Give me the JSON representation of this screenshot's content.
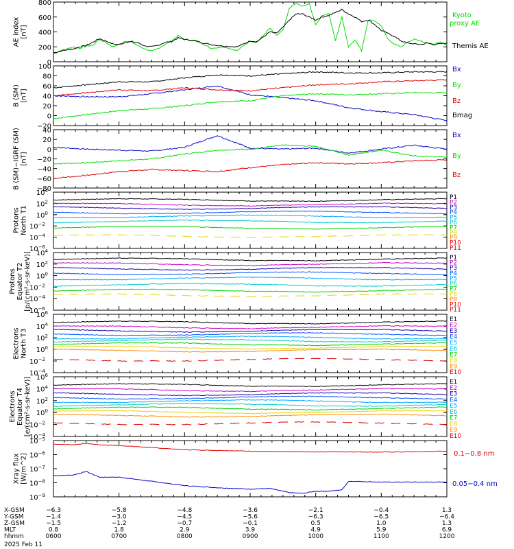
{
  "chart_data": [
    {
      "type": "line",
      "ylabel": [
        "AE index",
        "[nT]"
      ],
      "ylim": [
        0,
        800
      ],
      "yticks": [
        "0",
        "200",
        "400",
        "600",
        "800"
      ],
      "series": [
        {
          "name": "Kyoto proxy AE",
          "color": "#00dd00",
          "x": [
            0,
            0.1,
            0.2,
            0.3,
            0.4,
            0.5,
            0.6,
            0.7,
            0.8,
            0.9,
            1.0,
            1.1,
            1.2,
            1.3,
            1.4,
            1.5,
            1.6,
            1.7,
            1.8,
            1.9,
            2.0,
            2.2,
            2.4,
            2.6,
            2.8,
            3.0,
            3.1,
            3.2,
            3.3,
            3.4,
            3.5,
            3.6,
            3.7,
            3.8,
            3.9,
            4.0,
            4.1,
            4.2,
            4.3,
            4.4,
            4.5,
            4.6,
            4.7,
            4.8,
            4.9,
            5.0,
            5.1,
            5.2,
            5.3,
            5.4,
            5.5,
            5.6,
            5.7,
            5.8,
            5.9,
            6.0
          ],
          "values": [
            100,
            150,
            170,
            200,
            180,
            210,
            220,
            300,
            260,
            200,
            230,
            280,
            260,
            210,
            170,
            140,
            180,
            230,
            280,
            350,
            300,
            280,
            180,
            200,
            150,
            280,
            260,
            350,
            450,
            350,
            420,
            720,
            780,
            740,
            780,
            500,
            620,
            650,
            280,
            600,
            200,
            300,
            150,
            560,
            550,
            480,
            300,
            240,
            200,
            260,
            300,
            280,
            250,
            240,
            260,
            230
          ]
        },
        {
          "name": "Themis AE",
          "color": "#000000",
          "x": [
            0,
            0.1,
            0.2,
            0.3,
            0.4,
            0.5,
            0.6,
            0.7,
            0.8,
            0.9,
            1.0,
            1.1,
            1.2,
            1.3,
            1.4,
            1.5,
            1.6,
            1.7,
            1.8,
            1.9,
            2.0,
            2.2,
            2.4,
            2.6,
            2.8,
            3.0,
            3.1,
            3.2,
            3.3,
            3.4,
            3.5,
            3.6,
            3.7,
            3.8,
            3.9,
            4.0,
            4.1,
            4.2,
            4.3,
            4.4,
            4.5,
            4.6,
            4.7,
            4.8,
            4.9,
            5.0,
            5.1,
            5.2,
            5.3,
            5.4,
            5.5,
            5.6,
            5.7,
            5.8,
            5.9,
            6.0
          ],
          "values": [
            120,
            140,
            160,
            170,
            200,
            220,
            260,
            310,
            280,
            240,
            230,
            260,
            270,
            250,
            210,
            200,
            220,
            260,
            270,
            320,
            300,
            270,
            230,
            210,
            200,
            280,
            270,
            330,
            400,
            380,
            460,
            560,
            640,
            640,
            600,
            560,
            600,
            620,
            660,
            700,
            640,
            600,
            540,
            560,
            500,
            420,
            380,
            340,
            280,
            250,
            240,
            230,
            250,
            230,
            240,
            250
          ]
        }
      ],
      "legend": [
        "Kyoto proxy AE",
        "Themis AE"
      ]
    },
    {
      "type": "line",
      "ylabel": [
        "B (SM)",
        "[nT]"
      ],
      "ylim": [
        -20,
        100
      ],
      "yticks": [
        "−20",
        "0",
        "20",
        "40",
        "60",
        "80",
        "100"
      ],
      "series": [
        {
          "name": "Bx",
          "color": "#0000cc",
          "x": [
            0,
            0.5,
            1.0,
            1.5,
            2.0,
            2.5,
            3.0,
            3.5,
            4.0,
            4.5,
            5.0,
            5.5,
            6.0
          ],
          "values": [
            40,
            38,
            38,
            44,
            52,
            60,
            42,
            36,
            30,
            16,
            8,
            2,
            -10
          ]
        },
        {
          "name": "By",
          "color": "#00dd00",
          "x": [
            0,
            0.5,
            1.0,
            1.5,
            2.0,
            2.5,
            3.0,
            3.5,
            4.0,
            4.5,
            5.0,
            5.5,
            6.0
          ],
          "values": [
            -6,
            2,
            10,
            14,
            20,
            28,
            30,
            40,
            44,
            42,
            44,
            46,
            46
          ]
        },
        {
          "name": "Bz",
          "color": "#dd0000",
          "x": [
            0,
            0.5,
            1.0,
            1.5,
            2.0,
            2.5,
            3.0,
            3.5,
            4.0,
            4.5,
            5.0,
            5.5,
            6.0
          ],
          "values": [
            40,
            46,
            52,
            50,
            56,
            52,
            50,
            56,
            62,
            64,
            68,
            70,
            72
          ]
        },
        {
          "name": "Bmag",
          "color": "#000000",
          "x": [
            0,
            0.5,
            1.0,
            1.5,
            2.0,
            2.5,
            3.0,
            3.5,
            4.0,
            4.5,
            5.0,
            5.5,
            6.0
          ],
          "values": [
            56,
            62,
            68,
            68,
            76,
            82,
            80,
            84,
            88,
            86,
            86,
            88,
            88
          ]
        }
      ],
      "legend": [
        "Bx",
        "By",
        "Bz",
        "Bmag"
      ]
    },
    {
      "type": "line",
      "ylabel": [
        "B (SM)−IGRF (SM)",
        "[nT]"
      ],
      "ylim": [
        -80,
        40
      ],
      "yticks": [
        "−80",
        "−60",
        "−40",
        "−20",
        "0",
        "20",
        "40"
      ],
      "series": [
        {
          "name": "Bx",
          "color": "#0000cc",
          "x": [
            0,
            0.5,
            1.0,
            1.5,
            2.0,
            2.5,
            3.0,
            3.5,
            4.0,
            4.5,
            5.0,
            5.5,
            6.0
          ],
          "values": [
            4,
            0,
            -2,
            -4,
            4,
            28,
            2,
            0,
            2,
            -8,
            0,
            8,
            0
          ]
        },
        {
          "name": "By",
          "color": "#00dd00",
          "x": [
            0,
            0.5,
            1.0,
            1.5,
            2.0,
            2.5,
            3.0,
            3.5,
            4.0,
            4.5,
            5.0,
            5.5,
            6.0
          ],
          "values": [
            -30,
            -28,
            -24,
            -20,
            -10,
            -2,
            0,
            8,
            6,
            -12,
            -2,
            -14,
            -16
          ]
        },
        {
          "name": "Bz",
          "color": "#dd0000",
          "x": [
            0,
            0.5,
            1.0,
            1.5,
            2.0,
            2.5,
            3.0,
            3.5,
            4.0,
            4.5,
            5.0,
            5.5,
            6.0
          ],
          "values": [
            -60,
            -54,
            -46,
            -42,
            -44,
            -46,
            -38,
            -32,
            -28,
            -30,
            -28,
            -24,
            -22
          ]
        }
      ],
      "legend": [
        "Bx",
        "By",
        "Bz"
      ]
    },
    {
      "type": "line",
      "ylabel": [
        "Protons",
        "North T1"
      ],
      "yscale": "log",
      "ylim_exp": [
        -6,
        4
      ],
      "yticks": [
        {
          "b": "10",
          "e": "4"
        },
        {
          "b": "10",
          "e": "2"
        },
        {
          "b": "10",
          "e": "0"
        },
        {
          "b": "10",
          "e": "-2"
        },
        {
          "b": "10",
          "e": "-4"
        },
        {
          "b": "10",
          "e": "-6"
        }
      ],
      "channels": [
        {
          "name": "P1",
          "color": "#000000",
          "log": 2.6
        },
        {
          "name": "P2",
          "color": "#c800c8",
          "log": 1.8
        },
        {
          "name": "P3",
          "color": "#1a00a8",
          "log": 1.2
        },
        {
          "name": "P4",
          "color": "#0050ff",
          "log": 0.4
        },
        {
          "name": "P5",
          "color": "#00a8ff",
          "log": -0.3
        },
        {
          "name": "P6",
          "color": "#00c8c8",
          "log": -1.2
        },
        {
          "name": "P7",
          "color": "#00d000",
          "log": -2.3
        },
        {
          "name": "P8",
          "color": "#e6d400",
          "log": -3.8
        },
        {
          "name": "P9",
          "color": "#ff8800"
        },
        {
          "name": "P10",
          "color": "#ff0000"
        },
        {
          "name": "P11",
          "color": "#d20000"
        }
      ]
    },
    {
      "type": "line",
      "ylabel": [
        "Protons",
        "Equator T2",
        "[p/(cm²-s-sr-keV)]"
      ],
      "yscale": "log",
      "ylim_exp": [
        -6,
        4
      ],
      "yticks": [
        {
          "b": "10",
          "e": "4"
        },
        {
          "b": "10",
          "e": "2"
        },
        {
          "b": "10",
          "e": "0"
        },
        {
          "b": "10",
          "e": "-2"
        },
        {
          "b": "10",
          "e": "-4"
        },
        {
          "b": "10",
          "e": "-6"
        }
      ],
      "channels": [
        {
          "name": "P1",
          "color": "#000000",
          "log": 2.8
        },
        {
          "name": "P2",
          "color": "#c800c8",
          "log": 2.0
        },
        {
          "name": "P3",
          "color": "#1a00a8",
          "log": 1.2
        },
        {
          "name": "P4",
          "color": "#0050ff",
          "log": 0.4
        },
        {
          "name": "P5",
          "color": "#00a8ff",
          "log": -0.5
        },
        {
          "name": "P6",
          "color": "#00c8c8",
          "log": -1.6
        },
        {
          "name": "P7",
          "color": "#00d000",
          "log": -2.6
        },
        {
          "name": "P8",
          "color": "#e6d400",
          "log": -3.4
        },
        {
          "name": "P9",
          "color": "#ff8800"
        },
        {
          "name": "P10",
          "color": "#ff0000"
        },
        {
          "name": "P11",
          "color": "#d20000"
        }
      ]
    },
    {
      "type": "line",
      "ylabel": [
        "Electrons",
        "North T3"
      ],
      "yscale": "log",
      "ylim_exp": [
        -4,
        6
      ],
      "yticks": [
        {
          "b": "10",
          "e": "6"
        },
        {
          "b": "10",
          "e": "4"
        },
        {
          "b": "10",
          "e": "2"
        },
        {
          "b": "10",
          "e": "0"
        },
        {
          "b": "10",
          "e": "-2"
        },
        {
          "b": "10",
          "e": "-4"
        }
      ],
      "channels": [
        {
          "name": "E1",
          "color": "#000000",
          "log": 4.6
        },
        {
          "name": "E2",
          "color": "#c800c8",
          "log": 3.8
        },
        {
          "name": "E3",
          "color": "#1a00a8",
          "log": 3.2
        },
        {
          "name": "E4",
          "color": "#0050ff",
          "log": 2.6
        },
        {
          "name": "E5",
          "color": "#00a8ff",
          "log": 2.0
        },
        {
          "name": "E6",
          "color": "#00c8c8",
          "log": 1.5
        },
        {
          "name": "E7",
          "color": "#00d000",
          "log": 0.9
        },
        {
          "name": "E8",
          "color": "#e6d400",
          "log": 0.3
        },
        {
          "name": "E9",
          "color": "#ff8800",
          "log": -0.2
        },
        {
          "name": "E10",
          "color": "#d20000",
          "log": -1.8
        }
      ]
    },
    {
      "type": "line",
      "ylabel": [
        "Electrons",
        "Equator T4",
        "[e/(cm²-s-sr-keV)]"
      ],
      "yscale": "log",
      "ylim_exp": [
        -4,
        6
      ],
      "yticks": [
        {
          "b": "10",
          "e": "6"
        },
        {
          "b": "10",
          "e": "4"
        },
        {
          "b": "10",
          "e": "2"
        },
        {
          "b": "10",
          "e": "0"
        },
        {
          "b": "10",
          "e": "-2"
        },
        {
          "b": "10",
          "e": "-4"
        }
      ],
      "channels": [
        {
          "name": "E1",
          "color": "#000000",
          "log": 4.6
        },
        {
          "name": "E2",
          "color": "#c800c8",
          "log": 3.8
        },
        {
          "name": "E3",
          "color": "#1a00a8",
          "log": 3.1
        },
        {
          "name": "E4",
          "color": "#0050ff",
          "log": 2.5
        },
        {
          "name": "E5",
          "color": "#00a8ff",
          "log": 1.9
        },
        {
          "name": "E6",
          "color": "#00c8c8",
          "log": 1.3
        },
        {
          "name": "E7",
          "color": "#00d000",
          "log": 0.7
        },
        {
          "name": "E8",
          "color": "#e6d400",
          "log": 0.1
        },
        {
          "name": "E9",
          "color": "#ff8800",
          "log": -0.5
        },
        {
          "name": "E10",
          "color": "#d20000",
          "log": -1.8
        }
      ]
    },
    {
      "type": "line",
      "ylabel": [
        "Xray flux",
        "[W/m^2]"
      ],
      "yscale": "log",
      "ylim_exp": [
        -9,
        -5
      ],
      "yticks": [
        {
          "b": "10",
          "e": "-5"
        },
        {
          "b": "10",
          "e": "-6"
        },
        {
          "b": "10",
          "e": "-7"
        },
        {
          "b": "10",
          "e": "-8"
        },
        {
          "b": "10",
          "e": "-9"
        }
      ],
      "series": [
        {
          "name": "0.1−0.8 nm",
          "color": "#dd0000",
          "x": [
            0,
            0.3,
            0.5,
            0.7,
            1.0,
            1.5,
            2.0,
            2.5,
            3.0,
            3.5,
            4.0,
            4.5,
            5.0,
            5.5,
            6.0
          ],
          "log": [
            -5.25,
            -5.3,
            -5.2,
            -5.3,
            -5.35,
            -5.5,
            -5.65,
            -5.7,
            -5.75,
            -5.8,
            -5.8,
            -5.8,
            -5.82,
            -5.8,
            -5.75
          ]
        },
        {
          "name": "0.05−0.4 nm",
          "color": "#0000cc",
          "x": [
            0,
            0.3,
            0.5,
            0.7,
            1.0,
            1.5,
            2.0,
            2.5,
            3.0,
            3.3,
            3.6,
            3.8,
            4.0,
            4.2,
            4.4,
            4.5,
            4.6,
            5.0,
            5.5,
            6.0
          ],
          "log": [
            -7.5,
            -7.45,
            -7.2,
            -7.6,
            -7.6,
            -7.9,
            -8.2,
            -8.35,
            -8.45,
            -8.4,
            -8.7,
            -8.75,
            -8.6,
            -8.6,
            -8.5,
            -7.9,
            -7.9,
            -7.95,
            -7.95,
            -7.95
          ]
        }
      ],
      "legend": [
        "0.1−0.8 nm",
        "0.05−0.4 nm"
      ]
    }
  ],
  "legends": {
    "ae": [
      {
        "text": "Kyoto",
        "color": "#00dd00"
      },
      {
        "text": "proxy AE",
        "color": "#00dd00"
      },
      {
        "text": "Themis AE",
        "color": "#000000"
      }
    ],
    "xray": [
      {
        "text": "0.1−0.8 nm",
        "color": "#dd0000"
      },
      {
        "text": "0.05−0.4 nm",
        "color": "#0000cc"
      }
    ]
  },
  "xaxis": {
    "ticks": [
      0,
      1,
      2,
      3,
      4,
      5,
      6
    ],
    "rows": [
      {
        "label": "X-GSM",
        "values": [
          "−6.3",
          "−5.8",
          "−4.8",
          "−3.6",
          "−2.1",
          "−0.4",
          "1.3"
        ]
      },
      {
        "label": "Y-GSM",
        "values": [
          "−1.4",
          "−3.0",
          "−4.5",
          "−5.6",
          "−6.3",
          "−6.5",
          "−6.4"
        ]
      },
      {
        "label": "Z-GSM",
        "values": [
          "−1.5",
          "−1.2",
          "−0.7",
          "−0.1",
          "0.5",
          "1.0",
          "1.3"
        ]
      },
      {
        "label": "MLT",
        "values": [
          "0.8",
          "1.8",
          "2.9",
          "3.9",
          "4.9",
          "5.9",
          "6.9"
        ]
      },
      {
        "label": "hhmm",
        "values": [
          "0600",
          "0700",
          "0800",
          "0900",
          "1000",
          "1100",
          "1200"
        ]
      }
    ],
    "date": "2025 Feb 11"
  }
}
